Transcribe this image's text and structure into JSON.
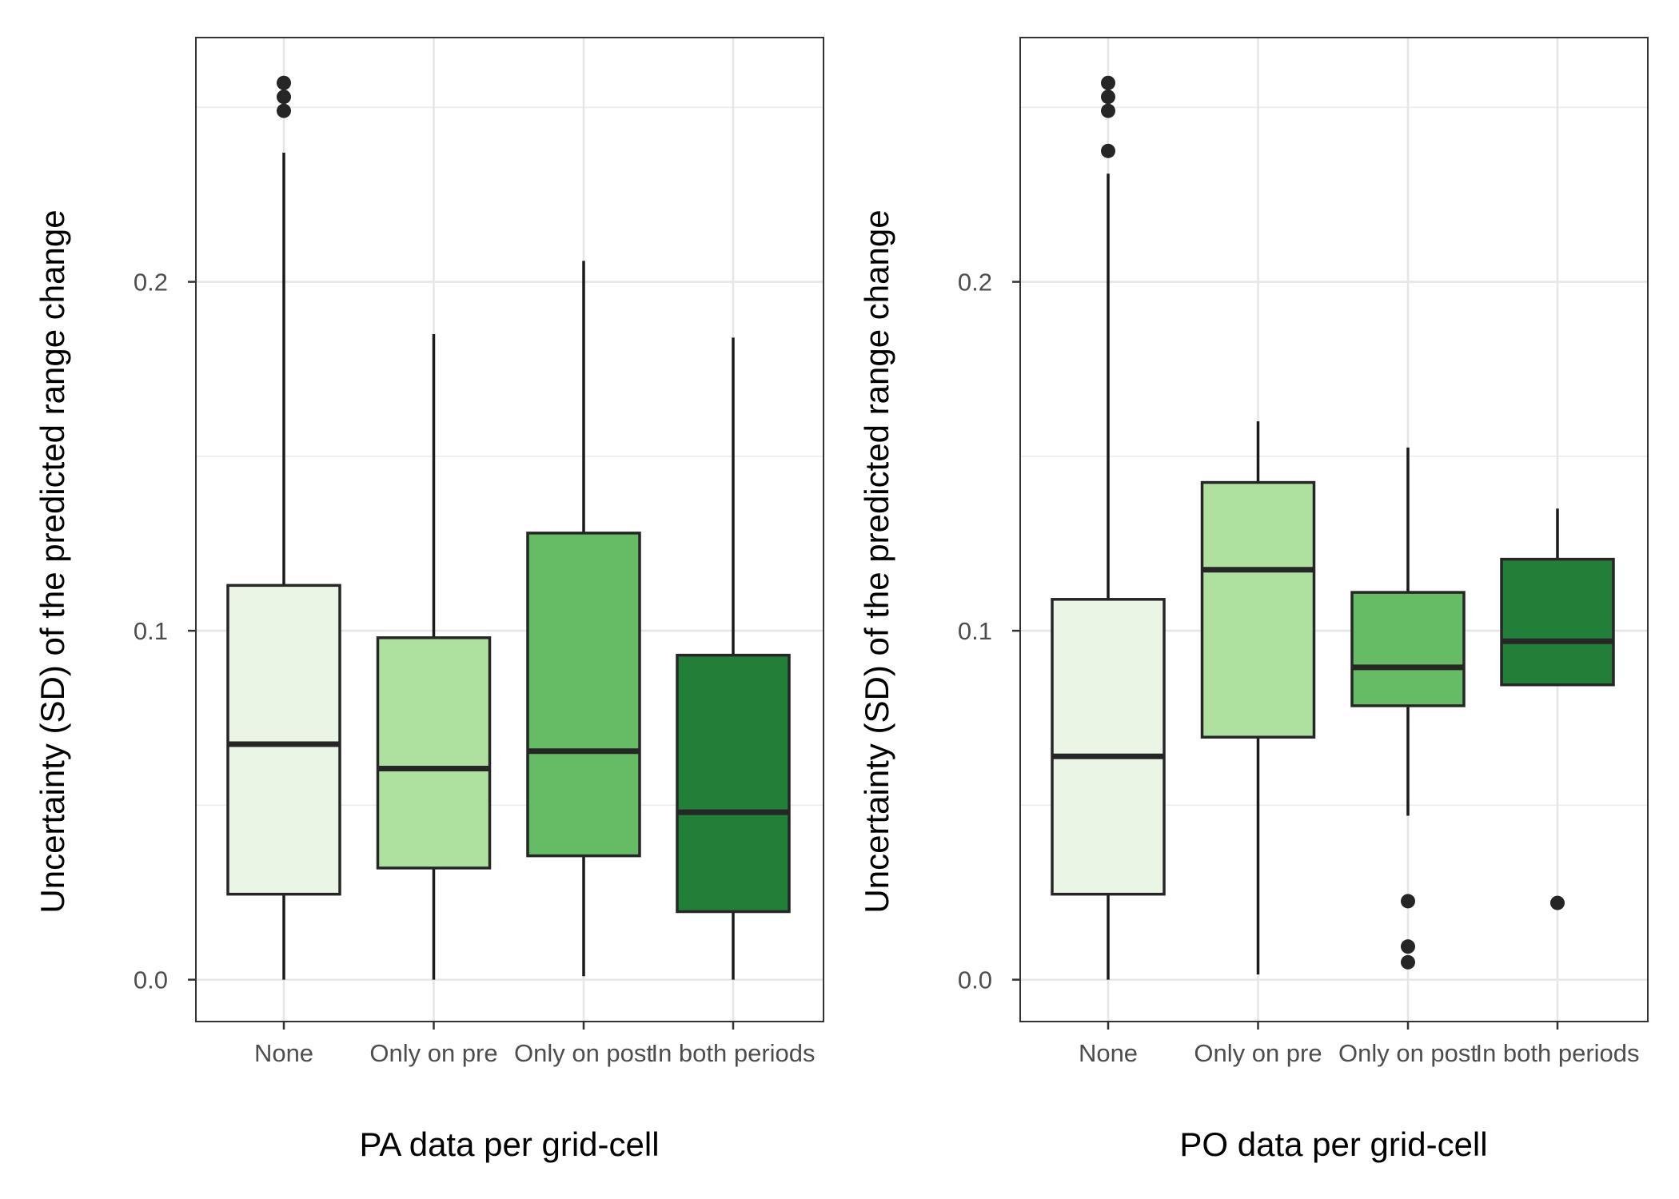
{
  "chart_data": [
    {
      "type": "box",
      "xlabel": "PA data per grid-cell",
      "ylabel": "Uncertainty (SD) of the predicted range change",
      "ylim": [
        -0.012,
        0.27
      ],
      "y_ticks": [
        0.0,
        0.1,
        0.2
      ],
      "y_tick_labels": [
        "0.0",
        "0.1",
        "0.2"
      ],
      "grid": true,
      "categories": [
        "None",
        "Only on pre",
        "Only on post",
        "In both periods"
      ],
      "boxes": [
        {
          "category": "None",
          "whisker_low": 0.0,
          "q1": 0.0245,
          "median": 0.0675,
          "q3": 0.113,
          "whisker_high": 0.237,
          "outliers": [
            0.249,
            0.253,
            0.257
          ],
          "color": "#eaf5e5"
        },
        {
          "category": "Only on pre",
          "whisker_low": 0.0,
          "q1": 0.032,
          "median": 0.0605,
          "q3": 0.098,
          "whisker_high": 0.185,
          "outliers": [],
          "color": "#aee0a0"
        },
        {
          "category": "Only on post",
          "whisker_low": 0.001,
          "q1": 0.0355,
          "median": 0.0655,
          "q3": 0.128,
          "whisker_high": 0.206,
          "outliers": [],
          "color": "#66bb65"
        },
        {
          "category": "In both periods",
          "whisker_low": 0.0,
          "q1": 0.0195,
          "median": 0.048,
          "q3": 0.093,
          "whisker_high": 0.184,
          "outliers": [],
          "color": "#227f38"
        }
      ]
    },
    {
      "type": "box",
      "xlabel": "PO data per grid-cell",
      "ylabel": "Uncertainty (SD) of the predicted range change",
      "ylim": [
        -0.012,
        0.27
      ],
      "y_ticks": [
        0.0,
        0.1,
        0.2
      ],
      "y_tick_labels": [
        "0.0",
        "0.1",
        "0.2"
      ],
      "grid": true,
      "categories": [
        "None",
        "Only on pre",
        "Only on post",
        "In both periods"
      ],
      "boxes": [
        {
          "category": "None",
          "whisker_low": 0.0,
          "q1": 0.0245,
          "median": 0.064,
          "q3": 0.109,
          "whisker_high": 0.231,
          "outliers": [
            0.2375,
            0.249,
            0.253,
            0.257
          ],
          "color": "#eaf5e5"
        },
        {
          "category": "Only on pre",
          "whisker_low": 0.0015,
          "q1": 0.0695,
          "median": 0.1175,
          "q3": 0.1425,
          "whisker_high": 0.16,
          "outliers": [],
          "color": "#aee0a0"
        },
        {
          "category": "Only on post",
          "whisker_low": 0.047,
          "q1": 0.0785,
          "median": 0.0895,
          "q3": 0.111,
          "whisker_high": 0.1525,
          "outliers": [
            0.0225,
            0.0095,
            0.005
          ],
          "color": "#66bb65"
        },
        {
          "category": "In both periods",
          "whisker_low": 0.0845,
          "q1": 0.0845,
          "median": 0.097,
          "q3": 0.1205,
          "whisker_high": 0.135,
          "outliers": [
            0.022
          ],
          "color": "#227f38"
        }
      ]
    }
  ]
}
